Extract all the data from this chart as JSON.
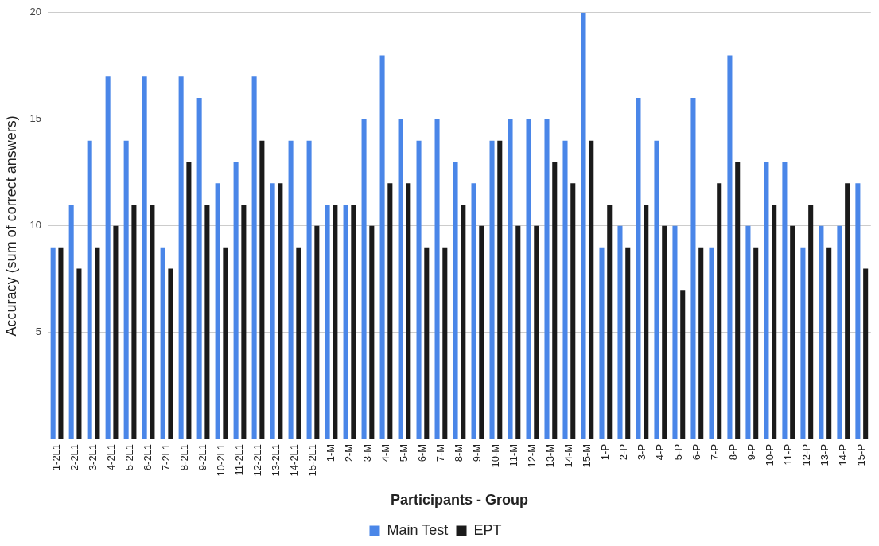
{
  "chart_data": {
    "type": "bar",
    "xlabel": "Participants - Group",
    "ylabel": "Accuracy (sum of correct answers)",
    "categories": [
      "1-2L1",
      "2-2L1",
      "3-2L1",
      "4-2L1",
      "5-2L1",
      "6-2L1",
      "7-2L1",
      "8-2L1",
      "9-2L1",
      "10-2L1",
      "11-2L1",
      "12-2L1",
      "13-2L1",
      "14-2L1",
      "15-2L1",
      "1-M",
      "2-M",
      "3-M",
      "4-M",
      "5-M",
      "6-M",
      "7-M",
      "8-M",
      "9-M",
      "10-M",
      "11-M",
      "12-M",
      "13-M",
      "14-M",
      "15-M",
      "1-P",
      "2-P",
      "3-P",
      "4-P",
      "5-P",
      "6-P",
      "7-P",
      "8-P",
      "9-P",
      "10-P",
      "11-P",
      "12-P",
      "13-P",
      "14-P",
      "15-P"
    ],
    "series": [
      {
        "name": "Main Test",
        "color": "#4a86e8",
        "values": [
          9,
          11,
          14,
          17,
          14,
          17,
          9,
          17,
          16,
          12,
          13,
          17,
          12,
          14,
          14,
          11,
          11,
          15,
          18,
          15,
          14,
          15,
          13,
          12,
          14,
          15,
          15,
          15,
          14,
          20,
          9,
          10,
          16,
          14,
          10,
          16,
          9,
          18,
          10,
          13,
          13,
          9,
          10,
          10,
          12
        ]
      },
      {
        "name": "EPT",
        "color": "#1a1a1a",
        "values": [
          9,
          8,
          9,
          10,
          11,
          11,
          8,
          13,
          11,
          9,
          11,
          14,
          12,
          9,
          10,
          11,
          11,
          10,
          12,
          12,
          9,
          9,
          11,
          10,
          14,
          10,
          10,
          13,
          12,
          14,
          11,
          9,
          11,
          10,
          7,
          9,
          12,
          13,
          9,
          11,
          10,
          11,
          9,
          12,
          8
        ]
      }
    ],
    "ylim": [
      0,
      20
    ],
    "yticks": [
      {
        "value": 0,
        "label": null
      },
      5,
      10,
      15,
      20
    ],
    "grid": "y",
    "legend": "bottom"
  }
}
